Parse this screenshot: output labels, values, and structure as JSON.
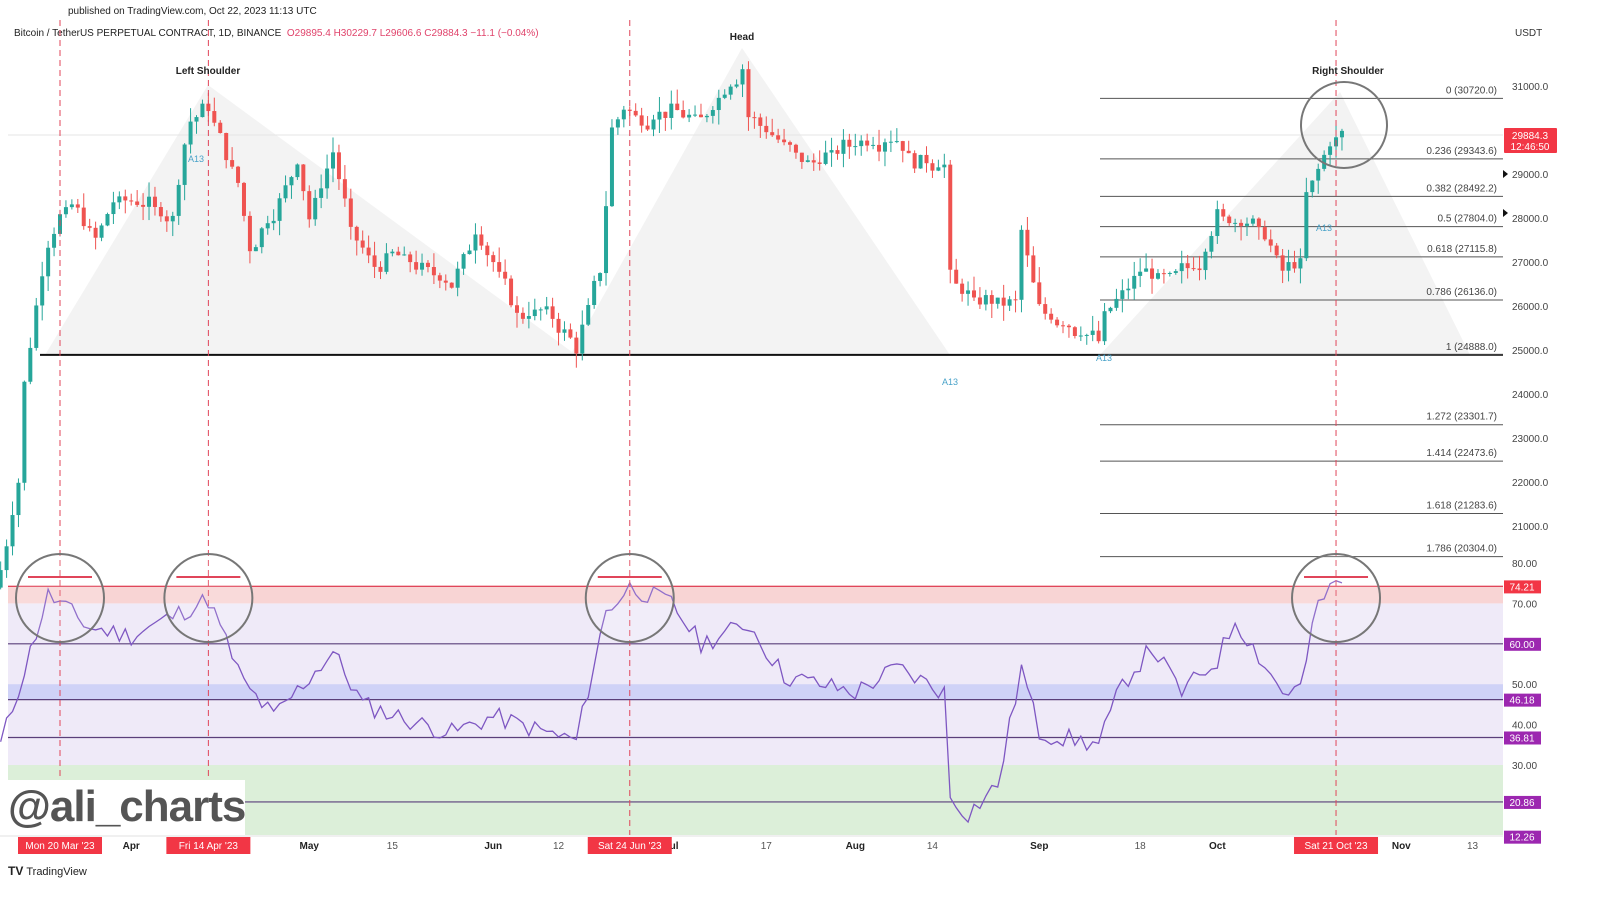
{
  "header": {
    "published": "published on TradingView.com, Oct 22, 2023 11:13 UTC",
    "symbol": "Bitcoin / TetherUS PERPETUAL CONTRACT, 1D, BINANCE",
    "open": "O29895.4",
    "high": "H30229.7",
    "low": "L29606.6",
    "close": "C29884.3",
    "change": "−11.1 (−0.04%)",
    "currency": "USDT"
  },
  "watermark": "@ali_charts",
  "footer": {
    "logo": "TV",
    "brand": "TradingView"
  },
  "colors": {
    "up": "#26a69a",
    "down": "#ef5350",
    "rsi": "#7e57c2",
    "tag_red": "#f23645",
    "tag_purple": "#9c27b0"
  },
  "chart_data": {
    "type": "candlestick",
    "title": "Bitcoin / TetherUS PERPETUAL CONTRACT, 1D, BINANCE",
    "x_start": "Mar 10 2023",
    "ylim": [
      20000,
      32000
    ],
    "price_ticks": [
      "31000.0",
      "29000.0",
      "28000.0",
      "27000.0",
      "26000.0",
      "25000.0",
      "24000.0",
      "23000.0",
      "22000.0",
      "21000.0"
    ],
    "price_tick_values": [
      31000,
      29000,
      28000,
      27000,
      26000,
      25000,
      24000,
      23000,
      22000,
      21000
    ],
    "close_keypoints": [
      [
        0,
        20000
      ],
      [
        3,
        22000
      ],
      [
        4,
        24200
      ],
      [
        7,
        26900
      ],
      [
        8,
        27400
      ],
      [
        10,
        28000
      ],
      [
        12,
        28300
      ],
      [
        16,
        27500
      ],
      [
        19,
        28400
      ],
      [
        22,
        28400
      ],
      [
        26,
        28200
      ],
      [
        29,
        28000
      ],
      [
        31,
        29700
      ],
      [
        32,
        30200
      ],
      [
        35,
        30500
      ],
      [
        38,
        29400
      ],
      [
        40,
        28800
      ],
      [
        42,
        27300
      ],
      [
        47,
        28400
      ],
      [
        50,
        29300
      ],
      [
        52,
        28000
      ],
      [
        56,
        29500
      ],
      [
        59,
        27700
      ],
      [
        63,
        26900
      ],
      [
        66,
        27200
      ],
      [
        71,
        26900
      ],
      [
        76,
        26500
      ],
      [
        80,
        27700
      ],
      [
        83,
        27000
      ],
      [
        87,
        25800
      ],
      [
        92,
        25900
      ],
      [
        97,
        25100
      ],
      [
        101,
        26800
      ],
      [
        102,
        28300
      ],
      [
        103,
        30000
      ],
      [
        105,
        30500
      ],
      [
        108,
        30200
      ],
      [
        113,
        30500
      ],
      [
        118,
        30200
      ],
      [
        125,
        31400
      ],
      [
        126,
        30300
      ],
      [
        130,
        29900
      ],
      [
        136,
        29200
      ],
      [
        144,
        29700
      ],
      [
        151,
        29800
      ],
      [
        153,
        29400
      ],
      [
        159,
        29200
      ],
      [
        160,
        26600
      ],
      [
        164,
        26100
      ],
      [
        171,
        26100
      ],
      [
        172,
        27700
      ],
      [
        175,
        25900
      ],
      [
        185,
        25200
      ],
      [
        186,
        25800
      ],
      [
        192,
        26800
      ],
      [
        196,
        26600
      ],
      [
        202,
        27000
      ],
      [
        205,
        28000
      ],
      [
        210,
        27900
      ],
      [
        213,
        27600
      ],
      [
        216,
        26800
      ],
      [
        219,
        27000
      ],
      [
        220,
        28500
      ],
      [
        224,
        29700
      ],
      [
        226,
        29884.3
      ]
    ],
    "current_price_tag": {
      "price": "29884.3",
      "countdown": "12:46:50"
    },
    "neckline": 24888,
    "pattern_labels": {
      "left": "Left Shoulder",
      "head": "Head",
      "right": "Right Shoulder"
    },
    "annotations": [
      "A13",
      "A13",
      "A13",
      "A13"
    ],
    "fib_levels": [
      {
        "label": "0 (30720.0)",
        "value": 30720
      },
      {
        "label": "0.236 (29343.6)",
        "value": 29343.6
      },
      {
        "label": "0.382 (28492.2)",
        "value": 28492.2
      },
      {
        "label": "0.5 (27804.0)",
        "value": 27804
      },
      {
        "label": "0.618 (27115.8)",
        "value": 27115.8
      },
      {
        "label": "0.786 (26136.0)",
        "value": 26136
      },
      {
        "label": "1 (24888.0)",
        "value": 24888
      },
      {
        "label": "1.272 (23301.7)",
        "value": 23301.7
      },
      {
        "label": "1.414 (22473.6)",
        "value": 22473.6
      },
      {
        "label": "1.618 (21283.6)",
        "value": 21283.6
      },
      {
        "label": "1.786 (20304.0)",
        "value": 20304
      }
    ],
    "rsi": {
      "ticks": [
        "80.00",
        "70.00",
        "50.00",
        "40.00",
        "30.00"
      ],
      "tick_values": [
        80,
        70,
        50,
        40,
        30
      ],
      "levels": [
        {
          "label": "74.21",
          "value": 74.21,
          "color": "#f23645"
        },
        {
          "label": "60.00",
          "value": 60,
          "color": "#9c27b0"
        },
        {
          "label": "46.18",
          "value": 46.18,
          "color": "#9c27b0"
        },
        {
          "label": "36.81",
          "value": 36.81,
          "color": "#9c27b0"
        },
        {
          "label": "20.86",
          "value": 20.86,
          "color": "#9c27b0"
        },
        {
          "label": "12.26",
          "value": 12.26,
          "color": "#9c27b0"
        }
      ],
      "keypoints": [
        [
          0,
          35
        ],
        [
          8,
          72
        ],
        [
          10,
          70
        ],
        [
          15,
          64
        ],
        [
          22,
          62
        ],
        [
          35,
          71
        ],
        [
          41,
          50
        ],
        [
          46,
          42
        ],
        [
          56,
          58
        ],
        [
          61,
          45
        ],
        [
          71,
          40
        ],
        [
          76,
          38
        ],
        [
          83,
          42
        ],
        [
          92,
          38
        ],
        [
          97,
          36
        ],
        [
          102,
          68
        ],
        [
          106,
          74
        ],
        [
          113,
          70
        ],
        [
          118,
          60
        ],
        [
          126,
          65
        ],
        [
          132,
          52
        ],
        [
          144,
          48
        ],
        [
          151,
          54
        ],
        [
          159,
          48
        ],
        [
          160,
          22
        ],
        [
          163,
          18
        ],
        [
          168,
          25
        ],
        [
          172,
          54
        ],
        [
          175,
          38
        ],
        [
          185,
          35
        ],
        [
          189,
          50
        ],
        [
          194,
          59
        ],
        [
          199,
          48
        ],
        [
          205,
          56
        ],
        [
          208,
          66
        ],
        [
          216,
          48
        ],
        [
          219,
          49
        ],
        [
          222,
          70
        ],
        [
          225,
          75
        ],
        [
          226,
          75
        ]
      ]
    },
    "time_axis": {
      "labels": [
        {
          "text": "Apr",
          "day": 22,
          "bold": true
        },
        {
          "text": "May",
          "day": 52,
          "bold": true
        },
        {
          "text": "15",
          "day": 66,
          "bold": false
        },
        {
          "text": "Jun",
          "day": 83,
          "bold": true
        },
        {
          "text": "12",
          "day": 94,
          "bold": false
        },
        {
          "text": "Jul",
          "day": 113,
          "bold": true
        },
        {
          "text": "17",
          "day": 129,
          "bold": false
        },
        {
          "text": "Aug",
          "day": 144,
          "bold": true
        },
        {
          "text": "14",
          "day": 157,
          "bold": false
        },
        {
          "text": "Sep",
          "day": 175,
          "bold": true
        },
        {
          "text": "18",
          "day": 192,
          "bold": false
        },
        {
          "text": "Oct",
          "day": 205,
          "bold": true
        },
        {
          "text": "Nov",
          "day": 236,
          "bold": true
        },
        {
          "text": "13",
          "day": 248,
          "bold": false
        }
      ],
      "highlighted_dates": [
        {
          "text": "Mon 20 Mar '23",
          "day": 10
        },
        {
          "text": "Fri 14 Apr '23",
          "day": 35
        },
        {
          "text": "Sat 24 Jun '23",
          "day": 106
        },
        {
          "text": "Sat 21 Oct '23",
          "day": 225
        }
      ]
    }
  }
}
